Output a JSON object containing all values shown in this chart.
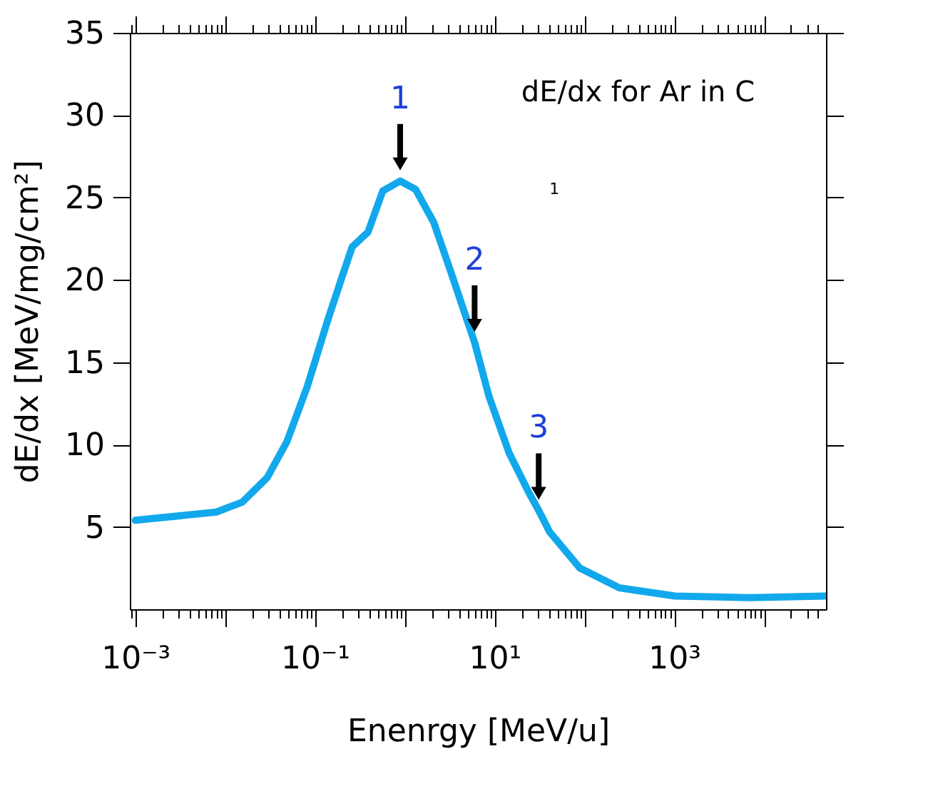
{
  "chart_data": {
    "type": "line",
    "xlabel": "Enenrgy [MeV/u]",
    "ylabel": "dE/dx [MeV/mg/cm²]",
    "log": "x",
    "grid": false,
    "marker": "none",
    "line_style": "solid",
    "xlim": [
      0.00087,
      49000
    ],
    "ylim": [
      0,
      35
    ],
    "xticks": [
      {
        "value": 0.001,
        "label": "10⁻³"
      },
      {
        "value": 0.01,
        "label": null
      },
      {
        "value": 0.1,
        "label": "10⁻¹"
      },
      {
        "value": 1,
        "label": null
      },
      {
        "value": 10,
        "label": "10¹"
      },
      {
        "value": 100,
        "label": null
      },
      {
        "value": 1000,
        "label": "10³"
      },
      {
        "value": 10000,
        "label": null
      }
    ],
    "yticks": [
      5,
      10,
      15,
      20,
      25,
      30,
      35
    ],
    "x": [
      0.001,
      0.008,
      0.0155,
      0.0295,
      0.049,
      0.082,
      0.138,
      0.204,
      0.26,
      0.39,
      0.57,
      0.89,
      1.32,
      2.1,
      3.3,
      5.2,
      6.0,
      8.7,
      14.5,
      24,
      31,
      41,
      89,
      245,
      1020,
      7000,
      49000
    ],
    "series": [
      {
        "color": "#12a8ec",
        "values": [
          5.4,
          5.9,
          6.5,
          8.0,
          10.2,
          13.5,
          17.5,
          20.3,
          22.0,
          22.9,
          25.4,
          26.0,
          25.5,
          23.5,
          20.4,
          17.2,
          16.2,
          12.9,
          9.5,
          7.1,
          6.0,
          4.7,
          2.5,
          1.3,
          0.8,
          0.7,
          0.8
        ]
      }
    ],
    "annotations": [
      {
        "text": "1",
        "x": 0.89,
        "y": 26.0
      },
      {
        "text": "2",
        "x": 6.0,
        "y": 16.2
      },
      {
        "text": "3",
        "x": 31,
        "y": 6.0
      },
      "dE/dx for Ar in C",
      "1"
    ]
  }
}
